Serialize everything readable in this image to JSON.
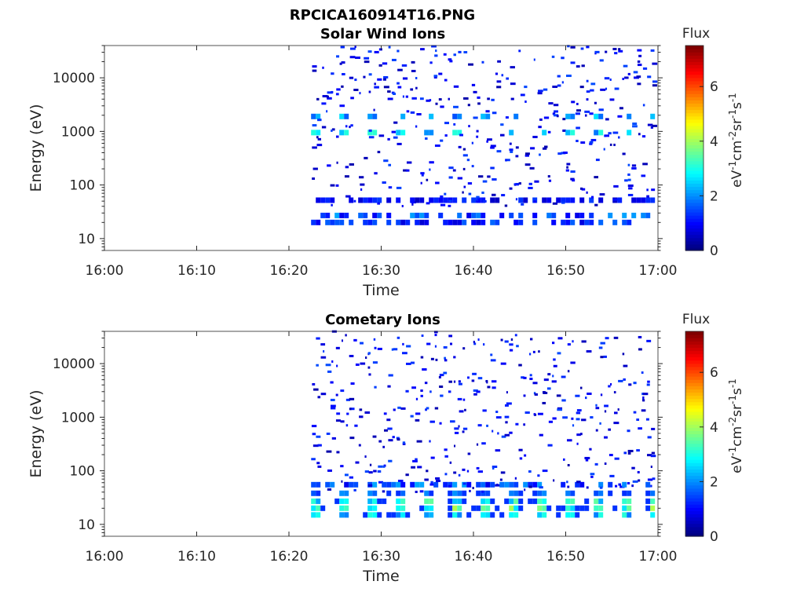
{
  "figure_title": "RPCICA160914T16.PNG",
  "chart_data": [
    {
      "type": "heatmap",
      "title": "Solar Wind Ions",
      "xlabel": "Time",
      "ylabel": "Energy (eV)",
      "yscale": "log",
      "xlim": [
        "16:00",
        "17:00"
      ],
      "ylim": [
        6,
        40000
      ],
      "x_ticks": [
        "16:00",
        "16:10",
        "16:20",
        "16:30",
        "16:40",
        "16:50",
        "17:00"
      ],
      "y_ticks": [
        "10",
        "100",
        "1000",
        "10000"
      ],
      "colorbar": {
        "label": "Flux",
        "units": "eV",
        "range": [
          0,
          7.5
        ],
        "ticks": [
          "0",
          "2",
          "4",
          "6"
        ],
        "colormap": "jet"
      },
      "data_start": "16:22",
      "bands": [
        {
          "energy_eV": 20,
          "level": 1.7
        },
        {
          "energy_eV": 27,
          "level": 2.2
        },
        {
          "energy_eV": 52,
          "level": 1.4
        },
        {
          "energy_eV": 950,
          "level": 3.0
        },
        {
          "energy_eV": 1900,
          "level": 2.4
        }
      ]
    },
    {
      "type": "heatmap",
      "title": "Cometary Ions",
      "xlabel": "Time",
      "ylabel": "Energy (eV)",
      "yscale": "log",
      "xlim": [
        "16:00",
        "17:00"
      ],
      "ylim": [
        6,
        40000
      ],
      "x_ticks": [
        "16:00",
        "16:10",
        "16:20",
        "16:30",
        "16:40",
        "16:50",
        "17:00"
      ],
      "y_ticks": [
        "10",
        "100",
        "1000",
        "10000"
      ],
      "colorbar": {
        "label": "Flux",
        "units": "eV",
        "range": [
          0,
          7.5
        ],
        "ticks": [
          "0",
          "2",
          "4",
          "6"
        ],
        "colormap": "jet"
      },
      "data_start": "16:22",
      "bands": [
        {
          "energy_eV": 15,
          "level": 2.6
        },
        {
          "energy_eV": 20,
          "level": 3.6
        },
        {
          "energy_eV": 27,
          "level": 3.0
        },
        {
          "energy_eV": 38,
          "level": 1.7
        },
        {
          "energy_eV": 55,
          "level": 2.2
        }
      ]
    }
  ]
}
